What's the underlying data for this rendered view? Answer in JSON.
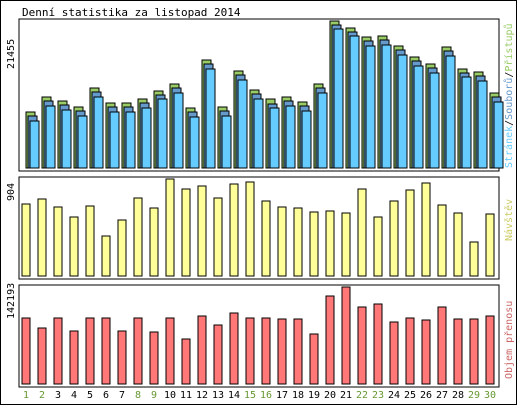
{
  "chart_data": {
    "type": "bar",
    "title": "Denní statistika za listopad 2014",
    "days": [
      "1",
      "2",
      "3",
      "4",
      "5",
      "6",
      "7",
      "8",
      "9",
      "10",
      "11",
      "12",
      "13",
      "14",
      "15",
      "16",
      "17",
      "18",
      "19",
      "20",
      "21",
      "22",
      "23",
      "24",
      "25",
      "26",
      "27",
      "28",
      "29",
      "30"
    ],
    "weekend_days": [
      "1",
      "2",
      "8",
      "9",
      "15",
      "16",
      "22",
      "23",
      "29",
      "30"
    ],
    "colors": {
      "hits": "#99cc66",
      "files": "#6699cc",
      "pages": "#66ccff",
      "visits": "#ffff99",
      "volume": "#ff7777",
      "weekend_label": "#669933",
      "weekday_label": "#000000",
      "legend_visits": "#cccc66",
      "legend_volume": "#cc6666"
    },
    "panels": [
      {
        "id": "requests",
        "max_label": "21455",
        "ylim": [
          0,
          21455
        ],
        "legend": [
          {
            "text": "Stránek",
            "color": "#66ccff"
          },
          {
            "text": "/",
            "color": "#000000"
          },
          {
            "text": "Souborů",
            "color": "#6699cc"
          },
          {
            "text": "/",
            "color": "#000000"
          },
          {
            "text": "Přístupů",
            "color": "#99cc66"
          }
        ],
        "series": [
          {
            "name": "Přístupů",
            "values": [
              8200,
              10300,
              9800,
              8900,
              11700,
              9500,
              9500,
              10100,
              11300,
              12300,
              8700,
              15700,
              8900,
              14100,
              11400,
              10000,
              10400,
              9600,
              12300,
              21500,
              20500,
              19100,
              19300,
              17800,
              16200,
              15200,
              17600,
              14500,
              14000,
              10900
            ]
          },
          {
            "name": "Souborů",
            "values": [
              7900,
              10000,
              9500,
              8600,
              11400,
              9200,
              9200,
              9800,
              11000,
              12000,
              8400,
              15400,
              8600,
              13800,
              11100,
              9700,
              10100,
              9300,
              12000,
              21200,
              20200,
              18800,
              19000,
              17500,
              15900,
              14900,
              17300,
              14200,
              13700,
              10600
            ]
          },
          {
            "name": "Stránek",
            "values": [
              7500,
              9600,
              9100,
              8200,
              11000,
              8800,
              8800,
              9400,
              10600,
              11600,
              8000,
              15000,
              8200,
              13400,
              10700,
              9300,
              9700,
              8900,
              11600,
              20800,
              19800,
              18400,
              18600,
              17100,
              15500,
              14500,
              16900,
              13800,
              13300,
              10200
            ]
          }
        ]
      },
      {
        "id": "visits",
        "max_label": "904",
        "ylim": [
          0,
          904
        ],
        "legend": [
          {
            "text": "Návštěv",
            "color": "#cccc66"
          }
        ],
        "series": [
          {
            "name": "Návštěv",
            "values": [
              670,
              720,
              640,
              550,
              650,
              370,
              520,
              730,
              630,
              904,
              810,
              840,
              730,
              860,
              880,
              700,
              640,
              630,
              600,
              610,
              590,
              810,
              550,
              700,
              800,
              870,
              660,
              590,
              320,
              580
            ]
          }
        ]
      },
      {
        "id": "volume",
        "max_label": "142193",
        "ylim": [
          0,
          142193
        ],
        "legend": [
          {
            "text": "Objem přenosu",
            "color": "#cc6666"
          }
        ],
        "series": [
          {
            "name": "Objem přenosu",
            "values": [
              97200,
              82600,
              97200,
              77800,
              96300,
              96300,
              77800,
              96300,
              75900,
              96300,
              65300,
              100100,
              86500,
              104000,
              96300,
              96300,
              95300,
              95300,
              74000,
              128600,
              142200,
              113100,
              118000,
              90400,
              97200,
              93300,
              113100,
              95300,
              95300,
              100100
            ]
          }
        ]
      }
    ]
  }
}
